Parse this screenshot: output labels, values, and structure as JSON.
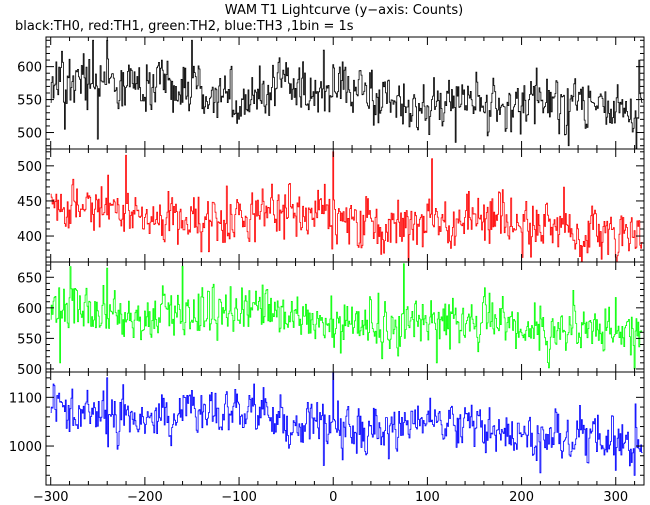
{
  "title": "WAM T1 Lightcurve (y−axis: Counts)",
  "subtitle": "black:TH0, red:TH1, green:TH2, blue:TH3 ,1bin = 1s",
  "chart_data": [
    {
      "type": "line",
      "name": "TH0",
      "color": "#000000",
      "xlim": [
        -305,
        330
      ],
      "ylim": [
        475,
        645
      ],
      "yticks": [
        500,
        550,
        600
      ],
      "ytick_labels": [
        "500",
        "550",
        "600"
      ],
      "x_start": -300,
      "x_end": 328,
      "mean_start": 575,
      "mean_end": 535,
      "noise": 25,
      "peaks": [
        {
          "x": -255,
          "y": 640
        },
        {
          "x": -240,
          "y": 640
        },
        {
          "x": -150,
          "y": 640
        },
        {
          "x": -10,
          "y": 625
        },
        {
          "x": 325,
          "y": 610
        }
      ],
      "dips": [
        {
          "x": -285,
          "y": 505
        },
        {
          "x": -250,
          "y": 490
        },
        {
          "x": 130,
          "y": 485
        },
        {
          "x": 250,
          "y": 480
        }
      ]
    },
    {
      "type": "line",
      "name": "TH1",
      "color": "#ff0000",
      "xlim": [
        -305,
        330
      ],
      "ylim": [
        363,
        524
      ],
      "yticks": [
        400,
        450,
        500
      ],
      "ytick_labels": [
        "400",
        "450",
        "500"
      ],
      "x_start": -300,
      "x_end": 328,
      "mean_start": 440,
      "mean_end": 410,
      "noise": 22,
      "peaks": [
        {
          "x": -220,
          "y": 515
        },
        {
          "x": 0,
          "y": 520
        },
        {
          "x": 105,
          "y": 510
        }
      ],
      "dips": [
        {
          "x": 80,
          "y": 365
        },
        {
          "x": 210,
          "y": 370
        },
        {
          "x": 300,
          "y": 370
        }
      ]
    },
    {
      "type": "line",
      "name": "TH2",
      "color": "#00ff00",
      "xlim": [
        -305,
        330
      ],
      "ylim": [
        495,
        675
      ],
      "yticks": [
        500,
        550,
        600,
        650
      ],
      "ytick_labels": [
        "500",
        "550",
        "600",
        "650"
      ],
      "x_start": -300,
      "x_end": 328,
      "mean_start": 600,
      "mean_end": 560,
      "noise": 25,
      "peaks": [
        {
          "x": -240,
          "y": 665
        },
        {
          "x": -160,
          "y": 668
        },
        {
          "x": 75,
          "y": 672
        }
      ],
      "dips": [
        {
          "x": -290,
          "y": 510
        },
        {
          "x": 110,
          "y": 510
        },
        {
          "x": 320,
          "y": 500
        }
      ]
    },
    {
      "type": "line",
      "name": "TH3",
      "color": "#0000ff",
      "xlim": [
        -305,
        330
      ],
      "ylim": [
        920,
        1152
      ],
      "yticks": [
        1000,
        1100
      ],
      "ytick_labels": [
        "1000",
        "1100"
      ],
      "x_start": -300,
      "x_end": 328,
      "mean_start": 1080,
      "mean_end": 1010,
      "noise": 30,
      "peaks": [
        {
          "x": -240,
          "y": 1140
        },
        {
          "x": 0,
          "y": 1150
        }
      ],
      "dips": [
        {
          "x": -10,
          "y": 960
        },
        {
          "x": 220,
          "y": 945
        },
        {
          "x": 300,
          "y": 950
        },
        {
          "x": 320,
          "y": 940
        }
      ]
    }
  ],
  "xaxis": {
    "ticks": [
      -300,
      -200,
      -100,
      0,
      100,
      200,
      300
    ],
    "tick_labels": [
      "−300",
      "−200",
      "−100",
      "0",
      "100",
      "200",
      "300"
    ],
    "minor_step": 20
  }
}
